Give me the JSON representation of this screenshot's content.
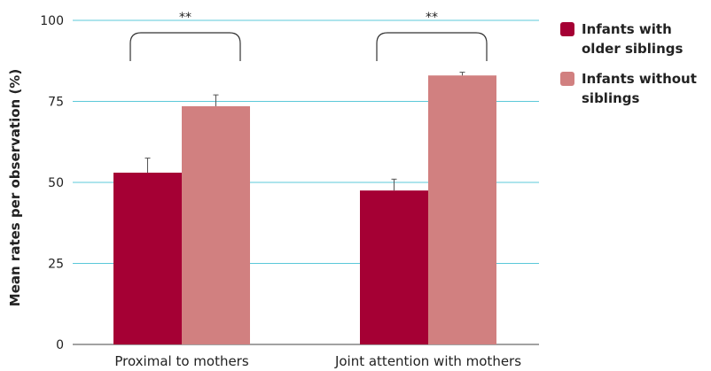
{
  "chart_data": {
    "type": "bar",
    "title": "",
    "xlabel": "",
    "ylabel": "Mean rates per observation (%)",
    "ylim": [
      0,
      100
    ],
    "yticks": [
      0,
      25,
      50,
      75,
      100
    ],
    "ytick_labels": [
      "0",
      "25",
      "50",
      "75",
      "100"
    ],
    "grid": true,
    "legend_position": "top-right",
    "categories": [
      "Proximal to mothers",
      "Joint attention with mothers"
    ],
    "series": [
      {
        "name": "Infants with older siblings",
        "color": "#a50034",
        "values": [
          53,
          47.5
        ],
        "errors": [
          4.5,
          3.5
        ]
      },
      {
        "name": "Infants without siblings",
        "color": "#d18080",
        "values": [
          73.5,
          83
        ],
        "errors": [
          3.5,
          1
        ]
      }
    ],
    "significance": [
      "**",
      "**"
    ],
    "gridline_color": "#5bc8d9"
  }
}
